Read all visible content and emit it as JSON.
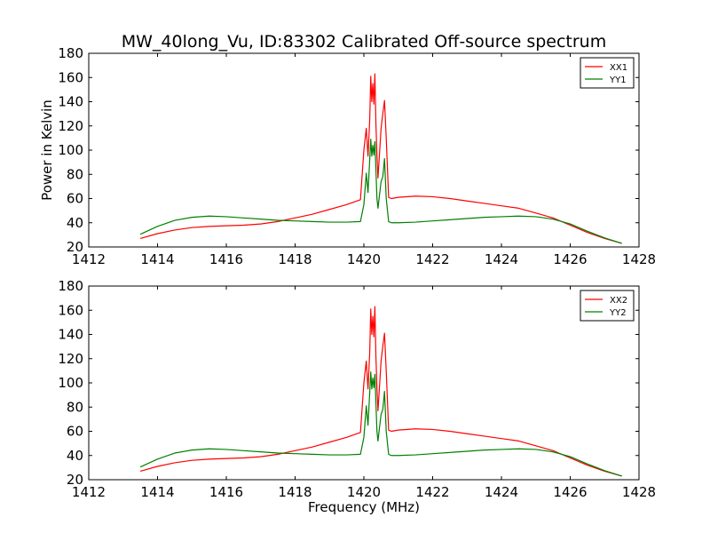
{
  "figure": {
    "title": "MW_40long_Vu, ID:83302 Calibrated Off-source spectrum"
  },
  "chart_data": [
    {
      "type": "line",
      "title": "MW_40long_Vu, ID:83302 Calibrated Off-source spectrum",
      "xlabel": "",
      "ylabel": "Power in Kelvin",
      "xlim": [
        1412,
        1428
      ],
      "ylim": [
        20,
        180
      ],
      "xticks": [
        1412,
        1414,
        1416,
        1418,
        1420,
        1422,
        1424,
        1426,
        1428
      ],
      "yticks": [
        20,
        40,
        60,
        80,
        100,
        120,
        140,
        160,
        180
      ],
      "grid": false,
      "legend_position": "top-right",
      "series": [
        {
          "name": "XX1",
          "color": "#ff0000",
          "x": [
            1413.5,
            1414.0,
            1414.5,
            1415.0,
            1415.5,
            1416.0,
            1416.5,
            1417.0,
            1417.5,
            1418.0,
            1418.5,
            1419.0,
            1419.5,
            1419.9,
            1420.0,
            1420.07,
            1420.12,
            1420.17,
            1420.2,
            1420.23,
            1420.26,
            1420.29,
            1420.32,
            1420.35,
            1420.38,
            1420.41,
            1420.45,
            1420.5,
            1420.55,
            1420.6,
            1420.65,
            1420.72,
            1420.8,
            1421.0,
            1421.5,
            1422.0,
            1422.5,
            1423.0,
            1423.5,
            1424.0,
            1424.5,
            1425.0,
            1425.5,
            1426.0,
            1426.5,
            1427.0,
            1427.5
          ],
          "y": [
            27,
            31,
            34,
            36,
            37,
            37.5,
            38,
            39,
            41,
            44,
            47,
            51,
            55,
            59,
            100,
            118,
            95,
            125,
            161,
            140,
            155,
            138,
            163,
            122,
            96,
            77,
            95,
            118,
            130,
            141,
            110,
            61,
            60,
            61,
            62,
            61.5,
            60,
            58,
            56,
            54,
            52,
            48,
            44,
            38,
            32,
            27,
            23
          ]
        },
        {
          "name": "YY1",
          "color": "#008000",
          "x": [
            1413.5,
            1414.0,
            1414.5,
            1415.0,
            1415.5,
            1416.0,
            1416.5,
            1417.0,
            1417.5,
            1418.0,
            1418.5,
            1419.0,
            1419.5,
            1419.9,
            1420.0,
            1420.07,
            1420.12,
            1420.17,
            1420.2,
            1420.23,
            1420.26,
            1420.29,
            1420.32,
            1420.35,
            1420.38,
            1420.41,
            1420.45,
            1420.5,
            1420.55,
            1420.6,
            1420.65,
            1420.72,
            1420.8,
            1421.0,
            1421.5,
            1422.0,
            1422.5,
            1423.0,
            1423.5,
            1424.0,
            1424.5,
            1425.0,
            1425.5,
            1426.0,
            1426.5,
            1427.0,
            1427.5
          ],
          "y": [
            30.5,
            37,
            42,
            44.5,
            45.5,
            45,
            44,
            43,
            42,
            41.5,
            41,
            40.5,
            40.5,
            41,
            55,
            81,
            65,
            92,
            109,
            95,
            104,
            96,
            107,
            84,
            60,
            52,
            62,
            74,
            78,
            93,
            60,
            41,
            40,
            40,
            40.5,
            41.5,
            42.5,
            43.5,
            44.5,
            45,
            45.5,
            45,
            43,
            39,
            33,
            27.5,
            23
          ]
        }
      ]
    },
    {
      "type": "line",
      "title": "",
      "xlabel": "Frequency (MHz)",
      "ylabel": "",
      "xlim": [
        1412,
        1428
      ],
      "ylim": [
        20,
        180
      ],
      "xticks": [
        1412,
        1414,
        1416,
        1418,
        1420,
        1422,
        1424,
        1426,
        1428
      ],
      "yticks": [
        20,
        40,
        60,
        80,
        100,
        120,
        140,
        160,
        180
      ],
      "grid": false,
      "legend_position": "top-right",
      "series": [
        {
          "name": "XX2",
          "color": "#ff0000",
          "x": [
            1413.5,
            1414.0,
            1414.5,
            1415.0,
            1415.5,
            1416.0,
            1416.5,
            1417.0,
            1417.5,
            1418.0,
            1418.5,
            1419.0,
            1419.5,
            1419.9,
            1420.0,
            1420.07,
            1420.12,
            1420.17,
            1420.2,
            1420.23,
            1420.26,
            1420.29,
            1420.32,
            1420.35,
            1420.38,
            1420.41,
            1420.45,
            1420.5,
            1420.55,
            1420.6,
            1420.65,
            1420.72,
            1420.8,
            1421.0,
            1421.5,
            1422.0,
            1422.5,
            1423.0,
            1423.5,
            1424.0,
            1424.5,
            1425.0,
            1425.5,
            1426.0,
            1426.5,
            1427.0,
            1427.5
          ],
          "y": [
            27,
            31,
            34,
            36,
            37,
            37.5,
            38,
            39,
            41,
            44,
            47,
            51,
            55,
            59,
            100,
            118,
            95,
            125,
            161,
            140,
            155,
            138,
            163,
            122,
            96,
            77,
            95,
            118,
            130,
            141,
            110,
            61,
            60,
            61,
            62,
            61.5,
            60,
            58,
            56,
            54,
            52,
            48,
            44,
            38,
            32,
            27,
            23
          ]
        },
        {
          "name": "YY2",
          "color": "#008000",
          "x": [
            1413.5,
            1414.0,
            1414.5,
            1415.0,
            1415.5,
            1416.0,
            1416.5,
            1417.0,
            1417.5,
            1418.0,
            1418.5,
            1419.0,
            1419.5,
            1419.9,
            1420.0,
            1420.07,
            1420.12,
            1420.17,
            1420.2,
            1420.23,
            1420.26,
            1420.29,
            1420.32,
            1420.35,
            1420.38,
            1420.41,
            1420.45,
            1420.5,
            1420.55,
            1420.6,
            1420.65,
            1420.72,
            1420.8,
            1421.0,
            1421.5,
            1422.0,
            1422.5,
            1423.0,
            1423.5,
            1424.0,
            1424.5,
            1425.0,
            1425.5,
            1426.0,
            1426.5,
            1427.0,
            1427.5
          ],
          "y": [
            30.5,
            37,
            42,
            44.5,
            45.5,
            45,
            44,
            43,
            42,
            41.5,
            41,
            40.5,
            40.5,
            41,
            55,
            81,
            65,
            92,
            109,
            95,
            104,
            96,
            107,
            84,
            60,
            52,
            62,
            74,
            78,
            93,
            60,
            41,
            40,
            40,
            40.5,
            41.5,
            42.5,
            43.5,
            44.5,
            45,
            45.5,
            45,
            43,
            39,
            33,
            27.5,
            23
          ]
        }
      ]
    }
  ]
}
